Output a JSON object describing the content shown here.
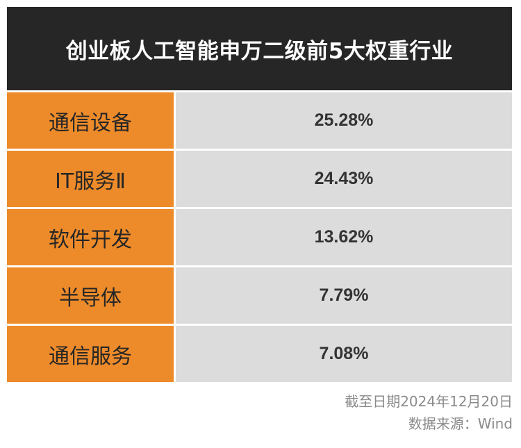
{
  "title": "创业板人工智能申万二级前5大权重行业",
  "rows": [
    {
      "industry": "通信设备",
      "weight": "25.28%"
    },
    {
      "industry": "IT服务Ⅱ",
      "weight": "24.43%"
    },
    {
      "industry": "软件开发",
      "weight": "13.62%"
    },
    {
      "industry": "半导体",
      "weight": "7.79%"
    },
    {
      "industry": "通信服务",
      "weight": "7.08%"
    }
  ],
  "footer": {
    "date_note": "截至日期2024年12月20日",
    "source_note": "数据来源：Wind"
  },
  "colors": {
    "title_bg": "#262626",
    "label_bg": "#ed8b2a",
    "value_bg": "#dcdcdc"
  }
}
